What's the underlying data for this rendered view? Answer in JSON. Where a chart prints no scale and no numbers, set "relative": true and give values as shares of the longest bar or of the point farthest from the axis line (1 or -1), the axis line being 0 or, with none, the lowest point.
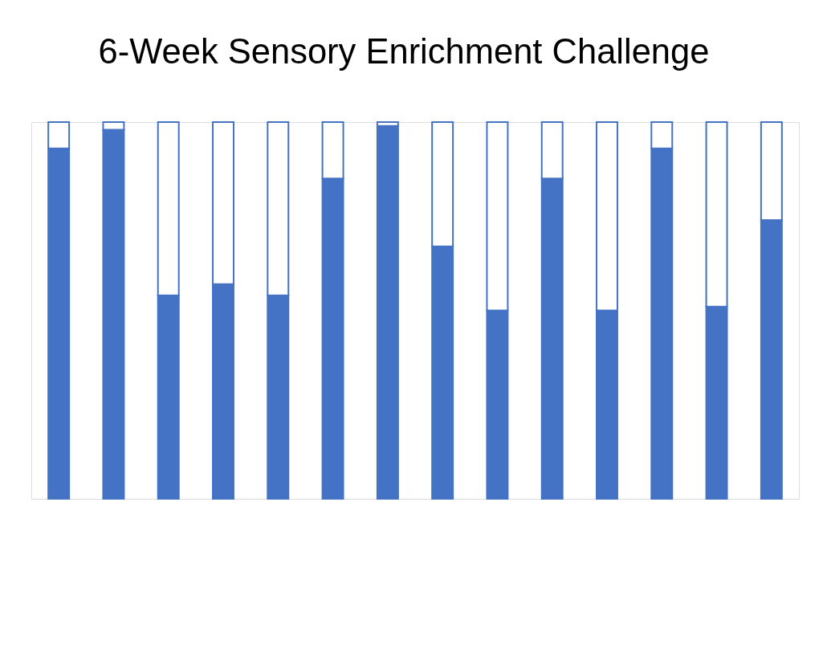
{
  "chart_data": {
    "type": "bar",
    "title": "6-Week Sensory Enrichment Challenge",
    "categories": [
      null,
      null,
      null,
      null,
      null,
      null,
      null,
      null,
      null,
      null,
      null,
      null,
      null,
      null
    ],
    "relative": true,
    "stacked": true,
    "series": [
      {
        "color": "#4472c4",
        "values": [
          0.93,
          0.98,
          0.54,
          0.57,
          0.54,
          0.85,
          0.99,
          0.67,
          0.5,
          0.85,
          0.5,
          0.93,
          0.51,
          0.74
        ]
      },
      {
        "color": "#ffffff",
        "values": [
          0.07,
          0.02,
          0.46,
          0.43,
          0.46,
          0.15,
          0.01,
          0.33,
          0.5,
          0.15,
          0.5,
          0.07,
          0.49,
          0.26
        ]
      }
    ]
  }
}
